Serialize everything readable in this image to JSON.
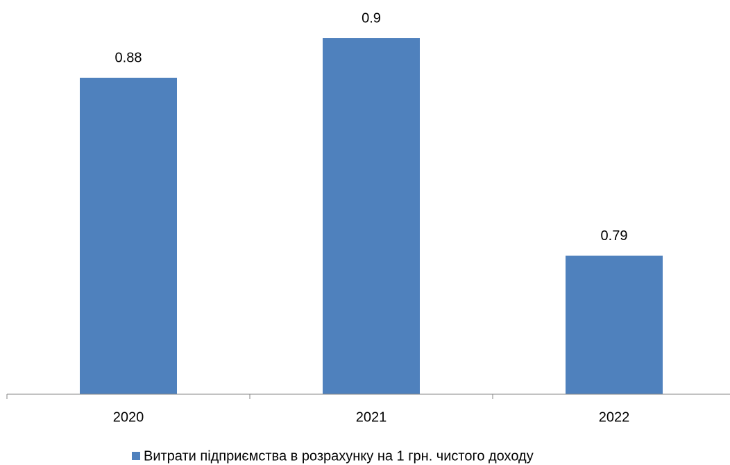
{
  "chart_data": {
    "type": "bar",
    "categories": [
      "2020",
      "2021",
      "2022"
    ],
    "series": [
      {
        "name": "Витрати підприємства в розрахунку на 1 грн. чистого доходу",
        "color": "#4f81bd",
        "values": [
          0.88,
          0.9,
          0.79
        ]
      }
    ],
    "ylim": [
      0.72,
      0.92
    ],
    "legend": "bottom"
  }
}
